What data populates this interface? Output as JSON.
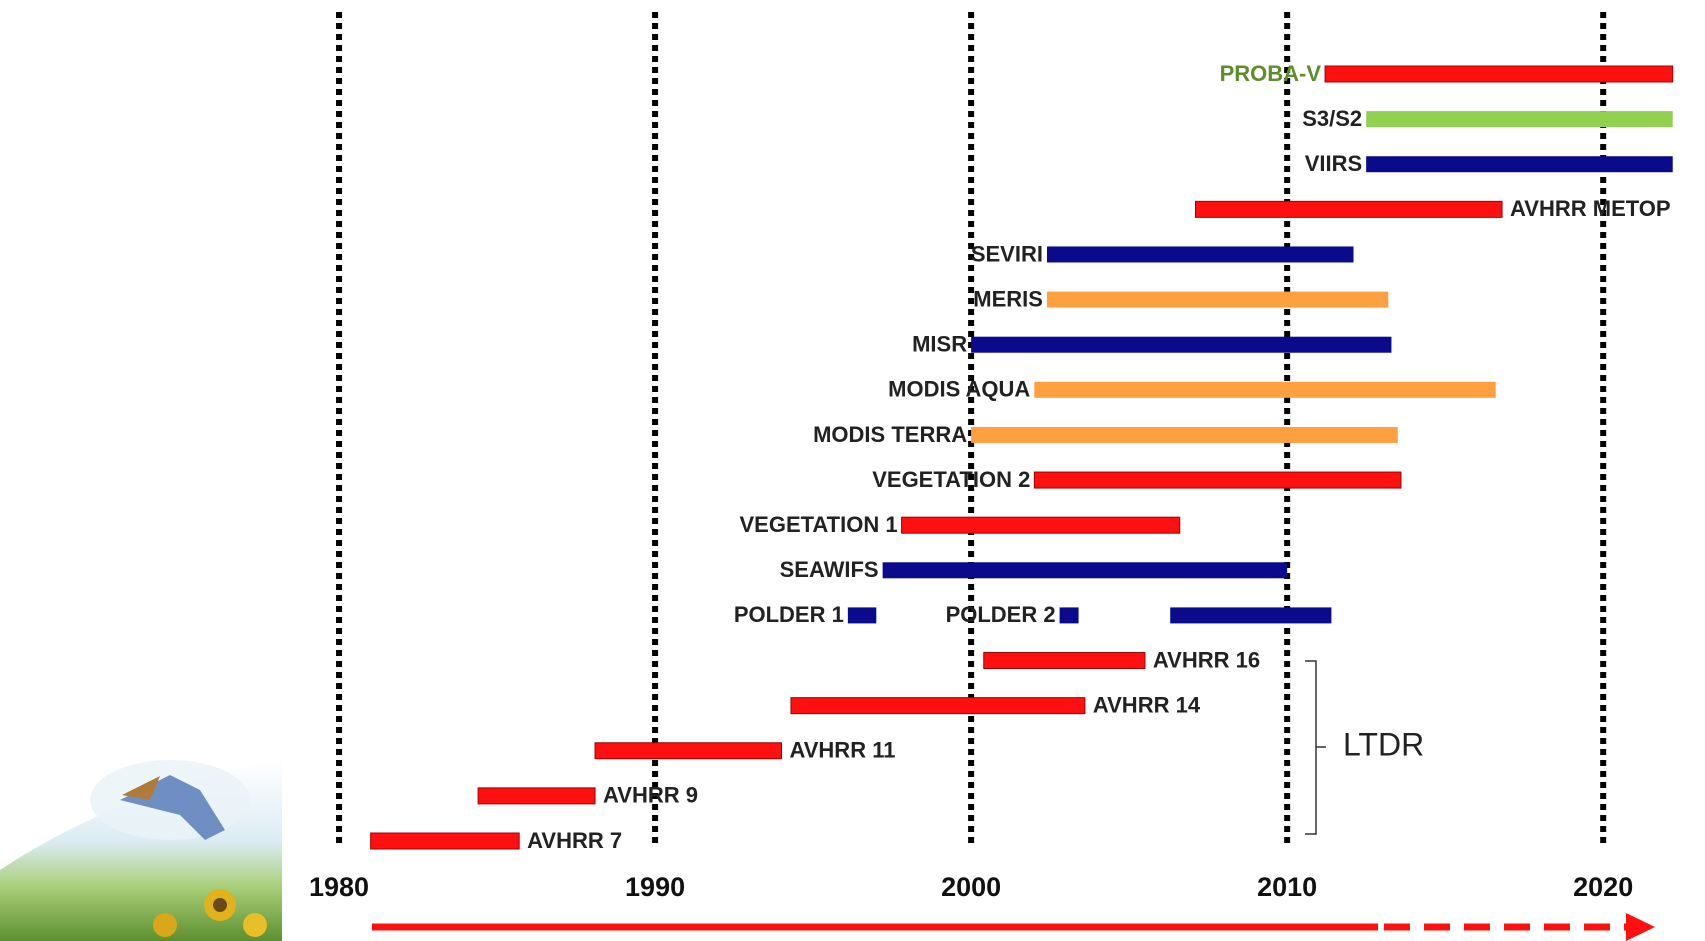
{
  "chart_data": {
    "type": "timeline",
    "xlim": [
      1970,
      2023
    ],
    "xticks": [
      1980,
      1990,
      2000,
      2010,
      2020
    ],
    "grid": true,
    "annotation": "LTDR",
    "rows": [
      [
        {
          "label": "PROBA-V",
          "label_color": "#5e8e2c",
          "label_side": "left",
          "color": "#ff1010",
          "start": 2011.2,
          "end": 2022.2
        }
      ],
      [
        {
          "label": "S3/S2",
          "label_color": "#222222",
          "label_side": "left",
          "color": "#92d050",
          "start": 2012.5,
          "end": 2022.2
        }
      ],
      [
        {
          "label": "VIIRS",
          "label_color": "#222222",
          "label_side": "left",
          "color": "#0a0a8c",
          "start": 2012.5,
          "end": 2022.2
        }
      ],
      [
        {
          "label": "AVHRR METOP",
          "label_color": "#222222",
          "label_side": "right",
          "color": "#ff1010",
          "start": 2007.1,
          "end": 2016.8
        }
      ],
      [
        {
          "label": "SEVIRI",
          "label_color": "#222222",
          "label_side": "left",
          "color": "#0a0a8c",
          "start": 2002.4,
          "end": 2012.1
        }
      ],
      [
        {
          "label": "MERIS",
          "label_color": "#222222",
          "label_side": "left",
          "color": "#ffa040",
          "start": 2002.4,
          "end": 2013.2
        }
      ],
      [
        {
          "label": "MISR",
          "label_color": "#222222",
          "label_side": "left",
          "color": "#0a0a8c",
          "start": 2000,
          "end": 2013.3
        }
      ],
      [
        {
          "label": "MODIS AQUA",
          "label_color": "#222222",
          "label_side": "left",
          "color": "#ffa040",
          "start": 2002.0,
          "end": 2016.6
        }
      ],
      [
        {
          "label": "MODIS TERRA",
          "label_color": "#222222",
          "label_side": "left",
          "color": "#ffa040",
          "start": 2000,
          "end": 2013.5
        }
      ],
      [
        {
          "label": "VEGETATION 2",
          "label_color": "#222222",
          "label_side": "left",
          "color": "#ff1010",
          "start": 2002.0,
          "end": 2013.6
        }
      ],
      [
        {
          "label": "VEGETATION 1",
          "label_color": "#222222",
          "label_side": "left",
          "color": "#ff1010",
          "start": 1997.8,
          "end": 2006.6
        }
      ],
      [
        {
          "label": "SEAWIFS",
          "label_color": "#222222",
          "label_side": "left",
          "color": "#0a0a8c",
          "start": 1997.2,
          "end": 2010
        }
      ],
      [
        {
          "label": "POLDER 1",
          "label_color": "#222222",
          "label_side": "left",
          "color": "#0a0a8c",
          "start": 1996.1,
          "end": 1997.0
        },
        {
          "label": "POLDER 2",
          "label_color": "#222222",
          "label_side": "left",
          "color": "#0a0a8c",
          "start": 2002.8,
          "end": 2003.4
        },
        {
          "label": null,
          "label_color": "#222222",
          "label_side": "left",
          "color": "#0a0a8c",
          "start": 2006.3,
          "end": 2011.4
        }
      ],
      [
        {
          "label": "AVHRR 16",
          "label_color": "#222222",
          "label_side": "right",
          "color": "#ff1010",
          "start": 2000.4,
          "end": 2005.5
        }
      ],
      [
        {
          "label": "AVHRR 14",
          "label_color": "#222222",
          "label_side": "right",
          "color": "#ff1010",
          "start": 1994.3,
          "end": 2003.6
        }
      ],
      [
        {
          "label": "AVHRR 11",
          "label_color": "#222222",
          "label_side": "right",
          "color": "#ff1010",
          "start": 1988.1,
          "end": 1994.0
        }
      ],
      [
        {
          "label": "AVHRR 9",
          "label_color": "#222222",
          "label_side": "right",
          "color": "#ff1010",
          "start": 1984.4,
          "end": 1988.1
        }
      ],
      [
        {
          "label": "AVHRR 7",
          "label_color": "#222222",
          "label_side": "right",
          "color": "#ff1010",
          "start": 1981.0,
          "end": 1985.7
        }
      ]
    ]
  }
}
